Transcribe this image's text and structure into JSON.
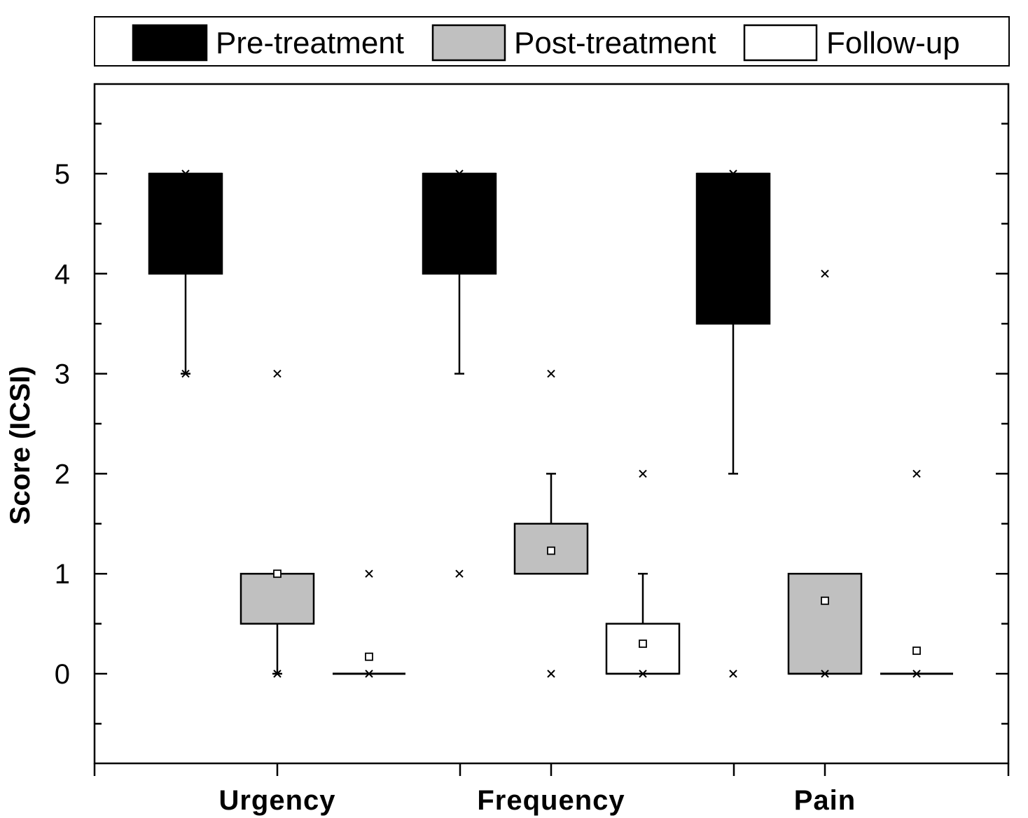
{
  "chart_data": {
    "type": "box",
    "title": "",
    "xlabel": "",
    "ylabel": "Score (ICSI)",
    "ylim": [
      -0.9,
      5.9
    ],
    "yticks": [
      0,
      1,
      2,
      3,
      4,
      5
    ],
    "ytick_labels": [
      "0",
      "1",
      "2",
      "3",
      "4",
      "5"
    ],
    "categories": [
      "Urgency",
      "Frequency",
      "Pain"
    ],
    "legend_position": "top",
    "grid": false,
    "series": [
      {
        "name": "Pre-treatment",
        "fill": "#000000",
        "boxes": [
          {
            "q1": 4,
            "q3": 5,
            "median": 5,
            "whisker_low": 3,
            "whisker_high": 5,
            "mean": null,
            "outliers": [
              3,
              5
            ]
          },
          {
            "q1": 4,
            "q3": 5,
            "median": 5,
            "whisker_low": 3,
            "whisker_high": 5,
            "mean": null,
            "outliers": [
              1,
              5
            ]
          },
          {
            "q1": 3.5,
            "q3": 5,
            "median": 5,
            "whisker_low": 2,
            "whisker_high": 5,
            "mean": null,
            "outliers": [
              0,
              5
            ]
          }
        ]
      },
      {
        "name": "Post-treatment",
        "fill": "#c0c0c0",
        "boxes": [
          {
            "q1": 0.5,
            "q3": 1,
            "median": 1,
            "whisker_low": 0,
            "whisker_high": 1,
            "mean": 1,
            "outliers": [
              3,
              0
            ]
          },
          {
            "q1": 1,
            "q3": 1.5,
            "median": 1,
            "whisker_low": 1,
            "whisker_high": 2,
            "mean": 1.23,
            "outliers": [
              3,
              0
            ]
          },
          {
            "q1": 0,
            "q3": 1,
            "median": 0,
            "whisker_low": 0,
            "whisker_high": 1,
            "mean": 0.73,
            "outliers": [
              4,
              0
            ]
          }
        ]
      },
      {
        "name": "Follow-up",
        "fill": "#ffffff",
        "boxes": [
          {
            "q1": 0,
            "q3": 0,
            "median": 0,
            "whisker_low": 0,
            "whisker_high": 0,
            "mean": 0.17,
            "outliers": [
              1,
              0
            ]
          },
          {
            "q1": 0,
            "q3": 0.5,
            "median": 0,
            "whisker_low": 0,
            "whisker_high": 1,
            "mean": 0.3,
            "outliers": [
              2,
              0
            ]
          },
          {
            "q1": 0,
            "q3": 0,
            "median": 0,
            "whisker_low": 0,
            "whisker_high": 0,
            "mean": 0.23,
            "outliers": [
              2,
              0
            ]
          }
        ]
      }
    ]
  }
}
